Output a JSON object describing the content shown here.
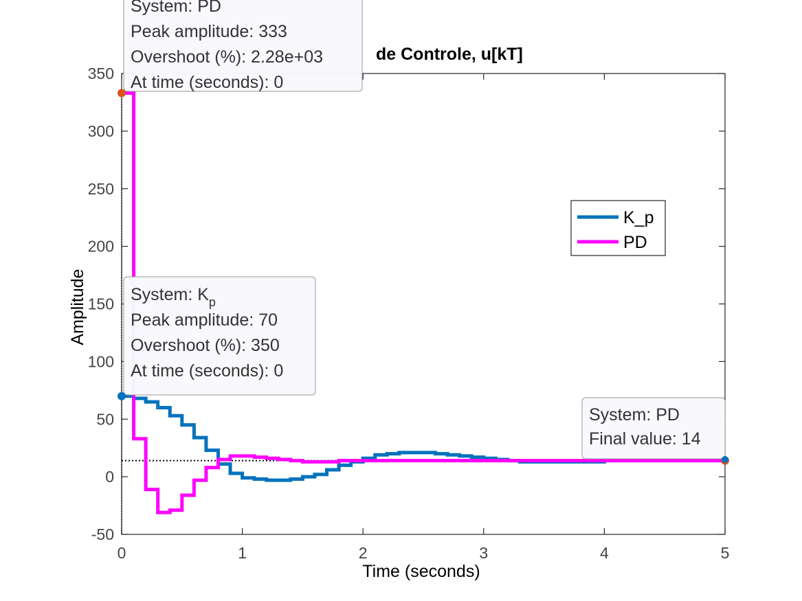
{
  "chart_data": {
    "type": "line",
    "title": "de Controle, u[kT]",
    "xlabel": "Time (seconds)",
    "ylabel": "Amplitude",
    "xlim": [
      0,
      5
    ],
    "ylim": [
      -50,
      350
    ],
    "xticks": [
      0,
      1,
      2,
      3,
      4,
      5
    ],
    "yticks": [
      -50,
      0,
      50,
      100,
      150,
      200,
      250,
      300,
      350
    ],
    "step": true,
    "sample_time": 0.1,
    "grid": false,
    "legend_position": "right",
    "steady_state": 14,
    "series": [
      {
        "name": "K_p",
        "color": "#0072BD",
        "values": [
          70,
          68,
          65,
          60,
          53,
          45,
          34,
          23,
          11,
          3,
          -1,
          -2,
          -3,
          -3,
          -2,
          0,
          2,
          6,
          10,
          13,
          16,
          19,
          20,
          21,
          21,
          21,
          20,
          19,
          18,
          17,
          16,
          15,
          14,
          13,
          13,
          13,
          13,
          13,
          13,
          13,
          14,
          14,
          14,
          14,
          14,
          14,
          14,
          14,
          14,
          14,
          15
        ]
      },
      {
        "name": "PD",
        "color": "#FF00FF",
        "values": [
          333,
          33,
          -11,
          -31,
          -29,
          -16,
          -3,
          8,
          15,
          18,
          18,
          17,
          16,
          15,
          14,
          13,
          13,
          13,
          14,
          14,
          14,
          14,
          14,
          14,
          14,
          14,
          14,
          14,
          14,
          14,
          14,
          14,
          14,
          14,
          14,
          14,
          14,
          14,
          14,
          14,
          14,
          14,
          14,
          14,
          14,
          14,
          14,
          14,
          14,
          14,
          14
        ]
      }
    ],
    "datatips": [
      {
        "lines": [
          "System: PD",
          "Peak amplitude: 333",
          "Overshoot (%): 2.28e+03",
          "At time (seconds): 0"
        ],
        "x": 0,
        "y": 333,
        "marker_color": "#D95319"
      },
      {
        "lines": [
          "System: K",
          "Peak amplitude: 70",
          "Overshoot (%): 350",
          "At time (seconds): 0"
        ],
        "subscript": "p",
        "x": 0,
        "y": 70,
        "marker_color": "#0072BD"
      },
      {
        "lines": [
          "System: PD",
          "Final value: 14"
        ],
        "x": 5,
        "y": 14,
        "marker_color": "#D95319"
      }
    ]
  }
}
